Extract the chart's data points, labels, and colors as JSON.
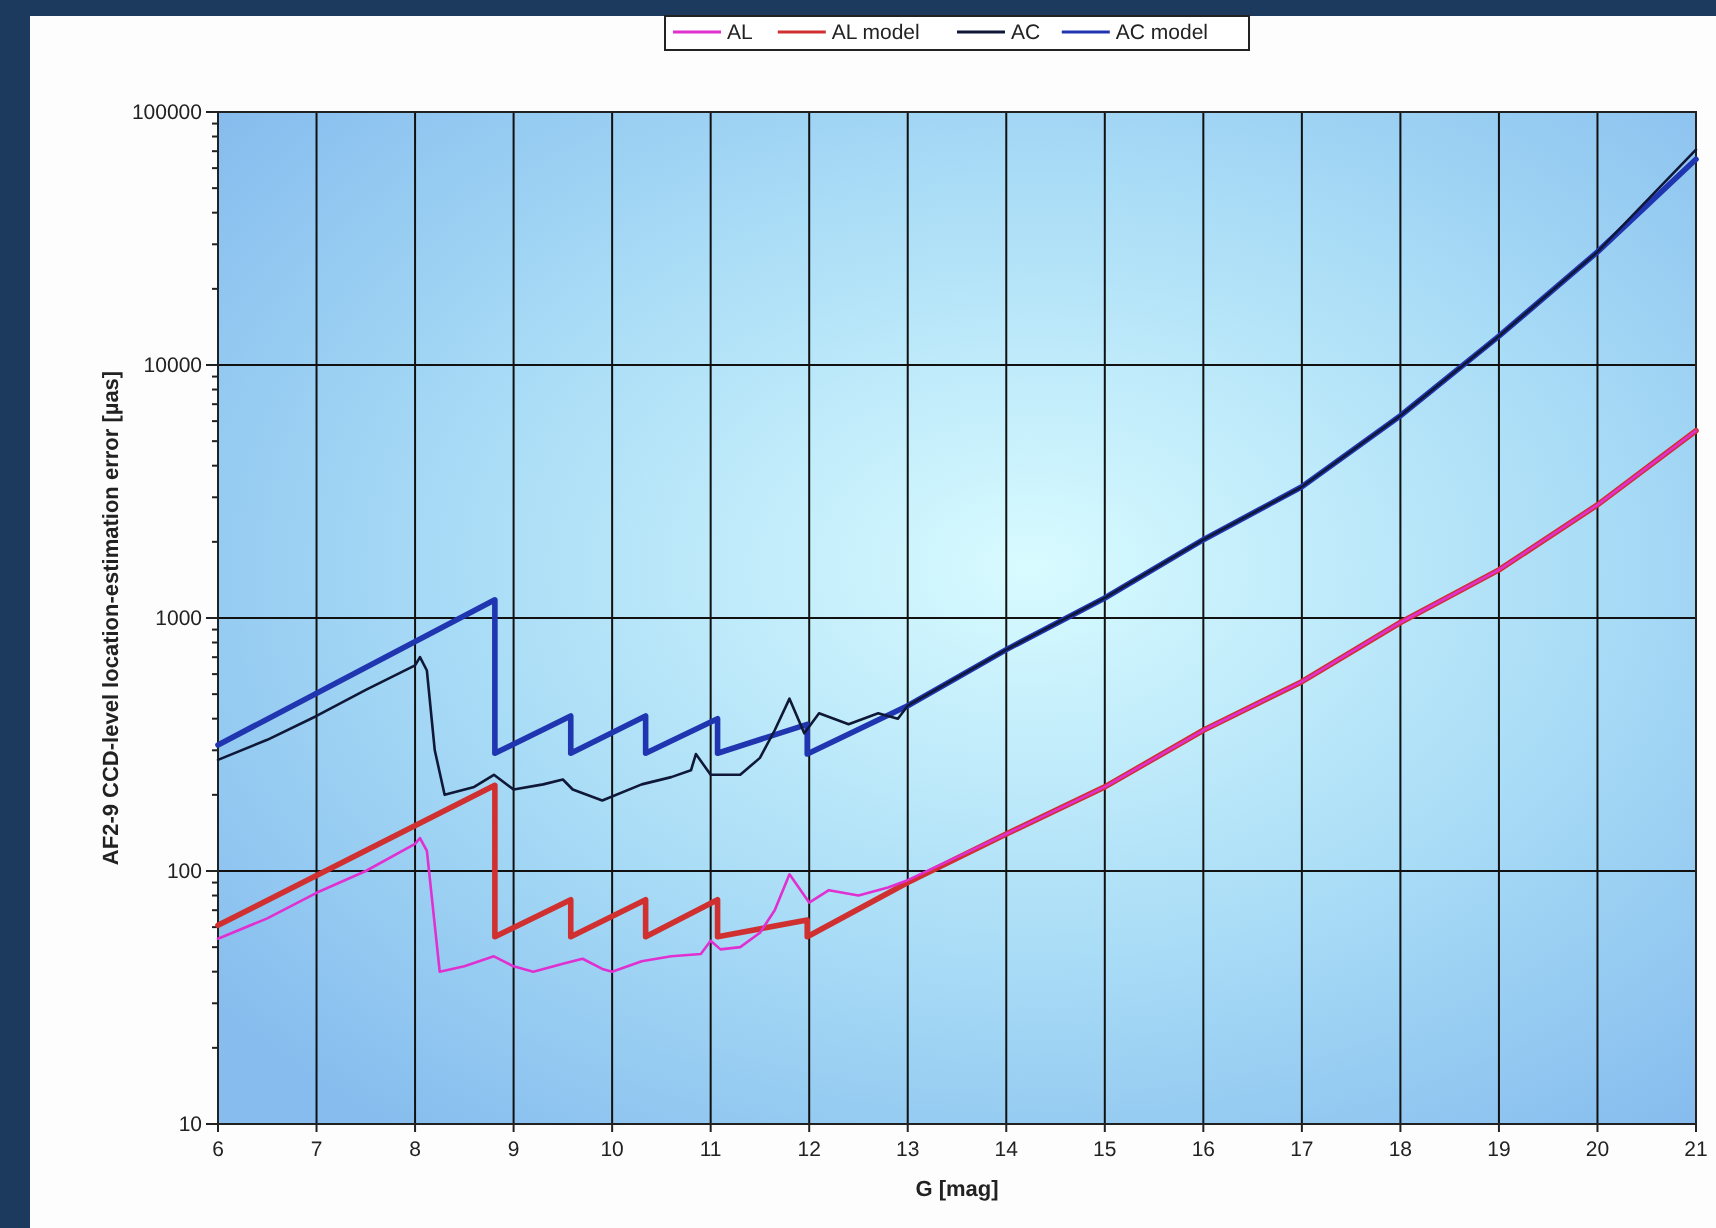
{
  "chart_data": {
    "type": "line",
    "xlabel": "G [mag]",
    "ylabel": "AF2-9 CCD-level location-estimation error [µas]",
    "log": "y",
    "grid": true,
    "legend": "top",
    "xlim": [
      6,
      21
    ],
    "xticks": [
      6,
      7,
      8,
      9,
      10,
      11,
      12,
      13,
      14,
      15,
      16,
      17,
      18,
      19,
      20,
      21
    ],
    "ylim": [
      10,
      100000
    ],
    "yticks": [
      10,
      {
        "value": 20,
        "label": null
      },
      {
        "value": 30,
        "label": null
      },
      {
        "value": 40,
        "label": null
      },
      {
        "value": 50,
        "label": null
      },
      {
        "value": 60,
        "label": null
      },
      {
        "value": 70,
        "label": null
      },
      {
        "value": 80,
        "label": null
      },
      {
        "value": 90,
        "label": null
      },
      100,
      {
        "value": 200,
        "label": null
      },
      {
        "value": 300,
        "label": null
      },
      {
        "value": 400,
        "label": null
      },
      {
        "value": 500,
        "label": null
      },
      {
        "value": 600,
        "label": null
      },
      {
        "value": 700,
        "label": null
      },
      {
        "value": 800,
        "label": null
      },
      {
        "value": 900,
        "label": null
      },
      1000,
      {
        "value": 2000,
        "label": null
      },
      {
        "value": 3000,
        "label": null
      },
      {
        "value": 4000,
        "label": null
      },
      {
        "value": 5000,
        "label": null
      },
      {
        "value": 6000,
        "label": null
      },
      {
        "value": 7000,
        "label": null
      },
      {
        "value": 8000,
        "label": null
      },
      {
        "value": 9000,
        "label": null
      },
      10000,
      {
        "value": 20000,
        "label": null
      },
      {
        "value": 30000,
        "label": null
      },
      {
        "value": 40000,
        "label": null
      },
      {
        "value": 50000,
        "label": null
      },
      {
        "value": 60000,
        "label": null
      },
      {
        "value": 70000,
        "label": null
      },
      {
        "value": 80000,
        "label": null
      },
      {
        "value": 90000,
        "label": null
      },
      100000
    ],
    "series": [
      {
        "name": "AL",
        "color": "#e030d0",
        "x": [
          6,
          6.5,
          7,
          7.5,
          8,
          8.05,
          8.12,
          8.25,
          8.5,
          8.8,
          9,
          9.2,
          9.5,
          9.7,
          9.9,
          10,
          10.3,
          10.6,
          10.9,
          11,
          11.1,
          11.3,
          11.5,
          11.65,
          11.8,
          11.95,
          12,
          12.2,
          12.5,
          12.8,
          13,
          14,
          15,
          16,
          17,
          18,
          19,
          20,
          21
        ],
        "values": [
          54,
          65,
          82,
          100,
          128,
          135,
          120,
          40,
          42,
          46,
          42,
          40,
          43,
          45,
          41,
          40,
          44,
          46,
          47,
          53,
          49,
          50,
          57,
          70,
          97,
          80,
          75,
          84,
          80,
          86,
          92,
          140,
          215,
          360,
          560,
          960,
          1550,
          2800,
          5500
        ]
      },
      {
        "name": "AL model",
        "color": "#d03030",
        "x": [
          6,
          8.81,
          8.81,
          9.58,
          9.58,
          10.34,
          10.34,
          11.07,
          11.07,
          11.98,
          11.98,
          13,
          14,
          15,
          16,
          17,
          18,
          19,
          20,
          21
        ],
        "values": [
          61,
          218,
          55,
          77,
          55,
          77,
          55,
          77,
          55,
          64,
          55,
          90,
          140,
          215,
          360,
          560,
          960,
          1550,
          2800,
          5500
        ]
      },
      {
        "name": "AC",
        "color": "#101838",
        "x": [
          6,
          6.5,
          7,
          7.5,
          8,
          8.05,
          8.12,
          8.2,
          8.3,
          8.6,
          8.8,
          9,
          9.3,
          9.5,
          9.6,
          9.9,
          10.3,
          10.6,
          10.8,
          10.85,
          11,
          11.3,
          11.5,
          11.65,
          11.8,
          11.95,
          12.1,
          12.4,
          12.7,
          12.9,
          13,
          14,
          15,
          16,
          17,
          18,
          19,
          20,
          21
        ],
        "values": [
          275,
          330,
          410,
          520,
          650,
          700,
          620,
          300,
          200,
          215,
          240,
          210,
          220,
          230,
          210,
          190,
          220,
          235,
          250,
          290,
          240,
          240,
          280,
          360,
          480,
          350,
          420,
          380,
          420,
          400,
          450,
          750,
          1200,
          2040,
          3300,
          6300,
          13000,
          28000,
          71000
        ]
      },
      {
        "name": "AC model",
        "color": "#2035b0",
        "x": [
          6,
          8.81,
          8.81,
          9.58,
          9.58,
          10.34,
          10.34,
          11.07,
          11.07,
          11.98,
          11.98,
          13,
          14,
          15,
          16,
          17,
          18,
          19,
          20,
          21
        ],
        "values": [
          315,
          1180,
          292,
          410,
          292,
          410,
          292,
          400,
          292,
          380,
          290,
          450,
          750,
          1200,
          2040,
          3300,
          6300,
          13000,
          28000,
          65000
        ]
      }
    ]
  }
}
